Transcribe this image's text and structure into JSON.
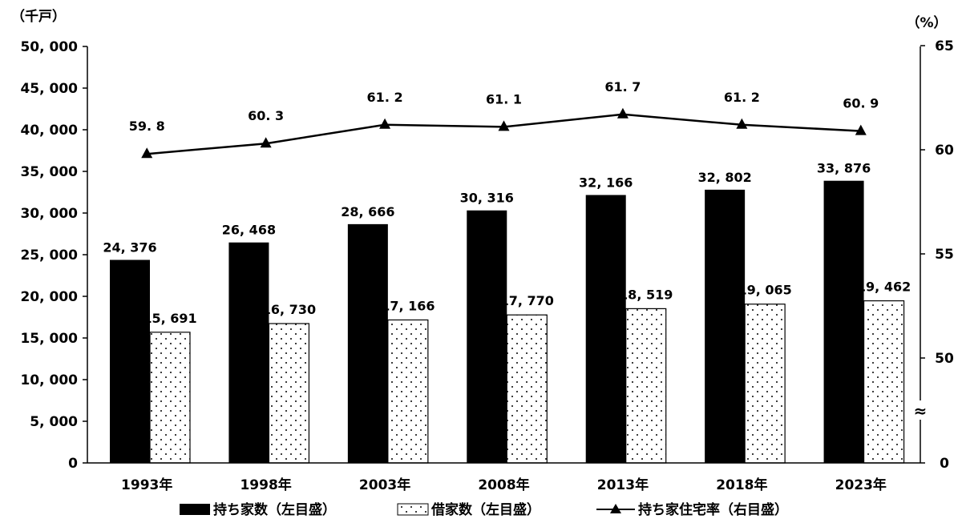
{
  "chart_data": {
    "type": "bar",
    "categories": [
      "1993年",
      "1998年",
      "2003年",
      "2008年",
      "2013年",
      "2018年",
      "2023年"
    ],
    "series": [
      {
        "name": "持ち家数（左目盛）",
        "type": "bar",
        "axis": "left",
        "pattern": "solid-black",
        "values": [
          24376,
          26468,
          28666,
          30316,
          32166,
          32802,
          33876
        ],
        "labels": [
          "24, 376",
          "26, 468",
          "28, 666",
          "30, 316",
          "32, 166",
          "32, 802",
          "33, 876"
        ]
      },
      {
        "name": "借家数（左目盛）",
        "type": "bar",
        "axis": "left",
        "pattern": "dotted-white",
        "values": [
          15691,
          16730,
          17166,
          17770,
          18519,
          19065,
          19462
        ],
        "labels": [
          "15, 691",
          "16, 730",
          "17, 166",
          "17, 770",
          "18, 519",
          "19, 065",
          "19, 462"
        ]
      },
      {
        "name": "持ち家住宅率（右目盛）",
        "type": "line",
        "axis": "right",
        "marker": "triangle",
        "values": [
          59.8,
          60.3,
          61.2,
          61.1,
          61.7,
          61.2,
          60.9
        ],
        "labels": [
          "59. 8",
          "60. 3",
          "61. 2",
          "61. 1",
          "61. 7",
          "61. 2",
          "60. 9"
        ]
      }
    ],
    "left_axis": {
      "unit": "（千戸）",
      "ylim": [
        0,
        50000
      ],
      "ticks": [
        0,
        5000,
        10000,
        15000,
        20000,
        25000,
        30000,
        35000,
        40000,
        45000,
        50000
      ],
      "tick_labels": [
        "0",
        "5, 000",
        "10, 000",
        "15, 000",
        "20, 000",
        "25, 000",
        "30, 000",
        "35, 000",
        "40, 000",
        "45, 000",
        "50, 000"
      ]
    },
    "right_axis": {
      "unit": "（%）",
      "axis_break": true,
      "break_symbol": "≈",
      "ticks": [
        0,
        50,
        55,
        60,
        65
      ],
      "tick_labels": [
        "0",
        "50",
        "55",
        "60",
        "65"
      ]
    },
    "grid": false,
    "legend_position": "bottom"
  }
}
